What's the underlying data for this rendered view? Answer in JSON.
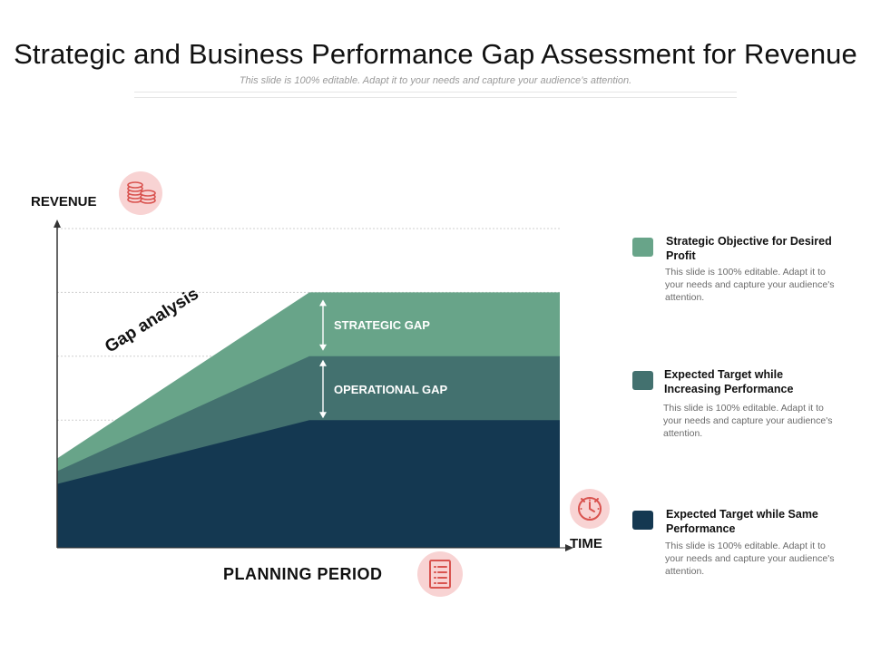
{
  "header": {
    "title": "Strategic and Business Performance Gap Assessment for Revenue",
    "subtitle": "This slide is 100% editable. Adapt it to your needs and capture your audience’s attention."
  },
  "chart_data": {
    "type": "area",
    "title": "Gap analysis",
    "xlabel": "TIME",
    "ylabel": "REVENUE",
    "x": [
      0,
      1,
      2
    ],
    "xlim": [
      0,
      2
    ],
    "ylim": [
      0,
      5
    ],
    "grid": true,
    "series": [
      {
        "name": "Expected Target while Same Performance",
        "values": [
          1.0,
          2.0,
          2.0
        ],
        "color": "#143851"
      },
      {
        "name": "Expected Target while Increasing Performance",
        "values": [
          1.2,
          3.0,
          3.0
        ],
        "color": "#43716f"
      },
      {
        "name": "Strategic Objective for Desired Profit",
        "values": [
          1.4,
          4.0,
          4.0
        ],
        "color": "#68a489"
      }
    ],
    "annotations": [
      "STRATEGIC GAP",
      "OPERATIONAL GAP"
    ],
    "bottom_label": "PLANNING  PERIOD"
  },
  "legend": [
    {
      "title": "Strategic Objective for Desired Profit",
      "desc": "This slide is 100% editable. Adapt it to your needs and capture your audience's attention.",
      "color": "#68a489"
    },
    {
      "title": "Expected Target while Increasing Performance",
      "desc": "This slide is 100% editable. Adapt it to your needs and capture your audience's attention.",
      "color": "#43716f"
    },
    {
      "title": "Expected Target while Same Performance",
      "desc": "This slide is 100% editable. Adapt it to your needs and capture your audience's attention.",
      "color": "#143851"
    }
  ],
  "icons": {
    "revenue": "coins-icon",
    "time": "clock-icon",
    "planning": "checklist-icon",
    "accent": "#d9534f",
    "circle_bg": "#f8d3d3"
  }
}
